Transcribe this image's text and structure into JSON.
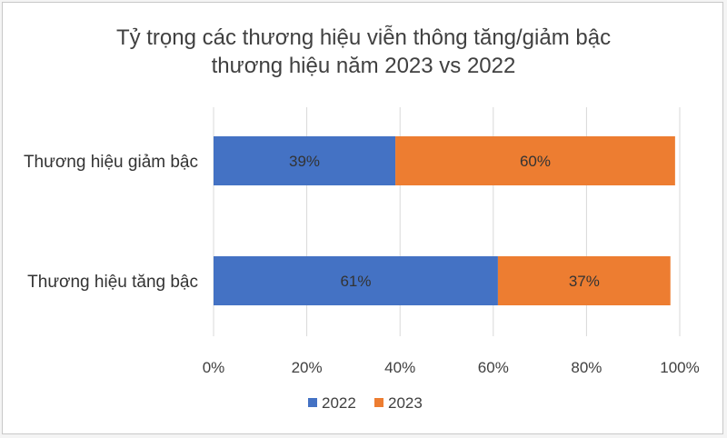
{
  "chart_data": {
    "type": "bar",
    "orientation": "horizontal",
    "stacked": true,
    "title_lines": [
      "Tỷ trọng các thương hiệu viễn thông tăng/giảm bậc",
      "thương hiệu năm 2023 vs 2022"
    ],
    "categories": [
      "Thương hiệu giảm bậc",
      "Thương hiệu tăng bậc"
    ],
    "series": [
      {
        "name": "2022",
        "color": "#4472C4",
        "values": [
          39,
          61
        ],
        "labels": [
          "39%",
          "61%"
        ]
      },
      {
        "name": "2023",
        "color": "#ED7D31",
        "values": [
          60,
          37
        ],
        "labels": [
          "60%",
          "37%"
        ]
      }
    ],
    "xlim": [
      0,
      100
    ],
    "xticks": [
      0,
      20,
      40,
      60,
      80,
      100
    ],
    "xtick_labels": [
      "0%",
      "20%",
      "40%",
      "60%",
      "80%",
      "100%"
    ],
    "grid": true,
    "legend_position": "bottom",
    "gridline_color": "#d9d9d9"
  }
}
